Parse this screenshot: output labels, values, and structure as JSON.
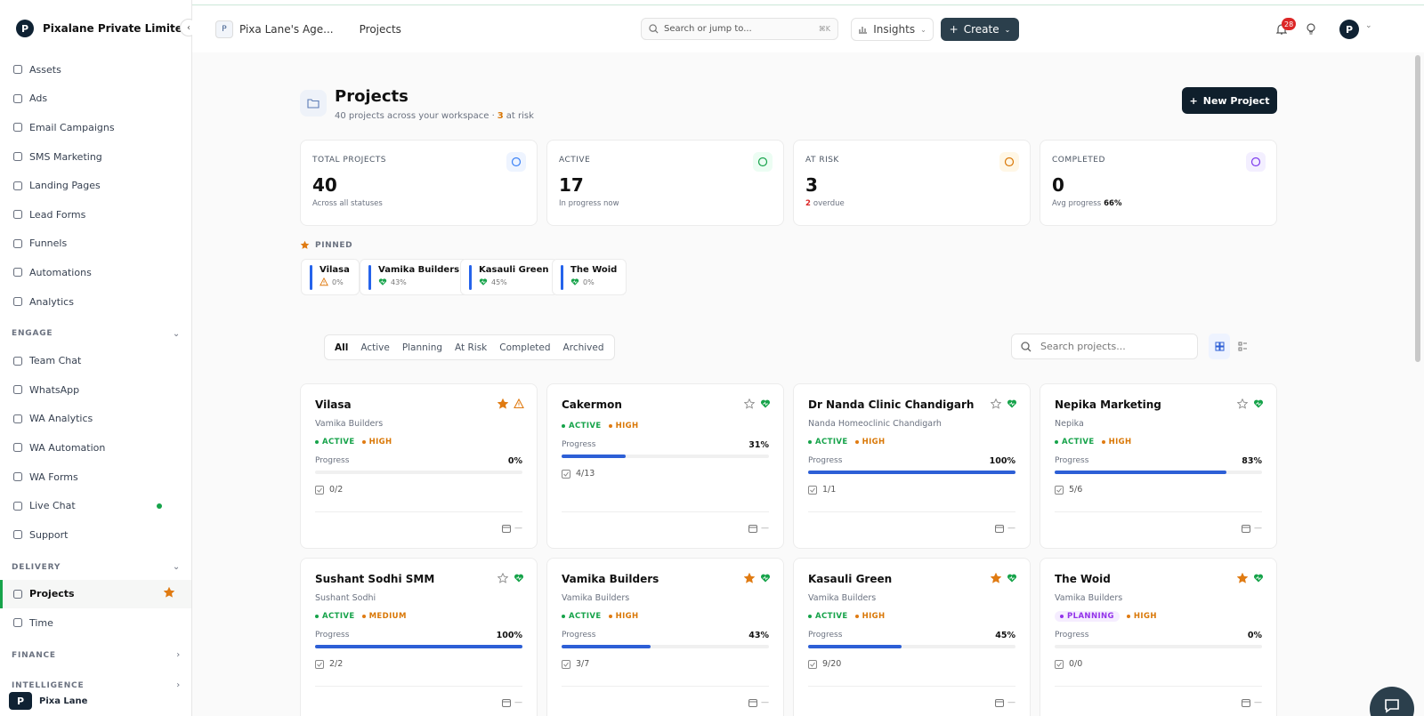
{
  "sidebar": {
    "brand": "Pixalane Private Limited",
    "items": [
      {
        "label": "Assets"
      },
      {
        "label": "Ads"
      },
      {
        "label": "Email Campaigns"
      },
      {
        "label": "SMS Marketing"
      },
      {
        "label": "Landing Pages"
      },
      {
        "label": "Lead Forms"
      },
      {
        "label": "Funnels"
      },
      {
        "label": "Automations"
      },
      {
        "label": "Analytics"
      }
    ],
    "sections": [
      {
        "label": "ENGAGE",
        "items": [
          {
            "label": "Team Chat"
          },
          {
            "label": "WhatsApp"
          },
          {
            "label": "WA Analytics"
          },
          {
            "label": "WA Automation"
          },
          {
            "label": "WA Forms"
          },
          {
            "label": "Live Chat",
            "online": true
          },
          {
            "label": "Support"
          }
        ]
      },
      {
        "label": "DELIVERY",
        "items": [
          {
            "label": "Projects",
            "active": true
          },
          {
            "label": "Time"
          }
        ]
      },
      {
        "label": "FINANCE",
        "items": []
      },
      {
        "label": "INTELLIGENCE",
        "items": []
      }
    ],
    "user": "Pixa Lane"
  },
  "topbar": {
    "workspace_initial": "P",
    "workspace": "Pixa Lane's Age...",
    "page": "Projects",
    "search": "Search or jump to...",
    "shortcut": "⌘K",
    "insights": "Insights",
    "create": "Create",
    "notifications": "28"
  },
  "header": {
    "title": "Projects",
    "subtitle": "40 projects across your workspace ·",
    "risk_count": "3",
    "risk_text": "at risk",
    "new_button": "New Project"
  },
  "stats": [
    {
      "label": "TOTAL PROJECTS",
      "value": "40",
      "sub": "Across all statuses",
      "color": "#3b82f6",
      "bg": "#eef4ff"
    },
    {
      "label": "ACTIVE",
      "value": "17",
      "sub": "In progress now",
      "color": "#16a34a",
      "bg": "#ecfdf3"
    },
    {
      "label": "AT RISK",
      "value": "3",
      "sub_count": "2",
      "sub": "overdue",
      "color": "#d97706",
      "bg": "#fff7e6"
    },
    {
      "label": "COMPLETED",
      "value": "0",
      "sub": "Avg progress",
      "sub_value": "66%",
      "color": "#7c3aed",
      "bg": "#f3efff"
    }
  ],
  "pinned": {
    "label": "PINNED",
    "items": [
      {
        "name": "Vilasa",
        "progress": "0%",
        "at_risk": true
      },
      {
        "name": "Vamika Builders",
        "progress": "43%"
      },
      {
        "name": "Kasauli Green",
        "progress": "45%"
      },
      {
        "name": "The Woid",
        "progress": "0%"
      }
    ]
  },
  "tabs": [
    "All",
    "Active",
    "Planning",
    "At Risk",
    "Completed",
    "Archived"
  ],
  "project_search": "Search projects...",
  "cards": {
    "progress_text": "Progress",
    "empty_date": "—",
    "items": [
      {
        "name": "Vilasa",
        "client": "Vamika Builders",
        "status": "ACTIVE",
        "status_color": "#16a34a",
        "priority": "HIGH",
        "progress": 0,
        "progress_label": "0%",
        "tasks": "0/2",
        "starred": true,
        "at_risk": true
      },
      {
        "name": "Cakermon",
        "status": "ACTIVE",
        "status_color": "#16a34a",
        "priority": "HIGH",
        "progress": 31,
        "progress_label": "31%",
        "tasks": "4/13"
      },
      {
        "name": "Dr Nanda Clinic Chandigarh",
        "client": "Nanda Homeoclinic Chandigarh",
        "status": "ACTIVE",
        "status_color": "#16a34a",
        "priority": "HIGH",
        "progress": 100,
        "progress_label": "100%",
        "tasks": "1/1"
      },
      {
        "name": "Nepika Marketing",
        "client": "Nepika",
        "status": "ACTIVE",
        "status_color": "#16a34a",
        "priority": "HIGH",
        "progress": 83,
        "progress_label": "83%",
        "tasks": "5/6"
      },
      {
        "name": "Sushant Sodhi SMM",
        "client": "Sushant Sodhi",
        "status": "ACTIVE",
        "status_color": "#16a34a",
        "priority": "MEDIUM",
        "progress": 100,
        "progress_label": "100%",
        "tasks": "2/2"
      },
      {
        "name": "Vamika Builders",
        "client": "Vamika Builders",
        "status": "ACTIVE",
        "status_color": "#16a34a",
        "priority": "HIGH",
        "progress": 43,
        "progress_label": "43%",
        "tasks": "3/7",
        "starred": true
      },
      {
        "name": "Kasauli Green",
        "client": "Vamika Builders",
        "status": "ACTIVE",
        "status_color": "#16a34a",
        "priority": "HIGH",
        "progress": 45,
        "progress_label": "45%",
        "tasks": "9/20",
        "starred": true
      },
      {
        "name": "The Woid",
        "client": "Vamika Builders",
        "status": "PLANNING",
        "status_color": "#9333ea",
        "priority": "HIGH",
        "progress": 0,
        "progress_label": "0%",
        "tasks": "0/0",
        "starred": true
      }
    ]
  }
}
